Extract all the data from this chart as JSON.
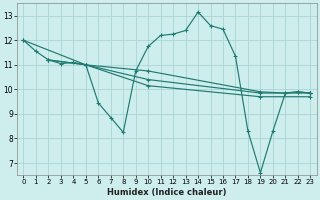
{
  "xlabel": "Humidex (Indice chaleur)",
  "xlim": [
    -0.5,
    23.5
  ],
  "ylim": [
    6.5,
    13.5
  ],
  "xticks": [
    0,
    1,
    2,
    3,
    4,
    5,
    6,
    7,
    8,
    9,
    10,
    11,
    12,
    13,
    14,
    15,
    16,
    17,
    18,
    19,
    20,
    21,
    22,
    23
  ],
  "yticks": [
    7,
    8,
    9,
    10,
    11,
    12,
    13
  ],
  "bg_color": "#ceeeed",
  "grid_color": "#aad4d2",
  "line_color": "#1f7a72",
  "series": [
    {
      "x": [
        0,
        1,
        2,
        3,
        4,
        5,
        6,
        7,
        8,
        9,
        10,
        11,
        12,
        13,
        14,
        15,
        16,
        17,
        18,
        19,
        20,
        21,
        22,
        23
      ],
      "y": [
        12.0,
        11.55,
        11.2,
        11.05,
        11.1,
        11.0,
        9.45,
        8.85,
        8.25,
        10.75,
        11.75,
        12.2,
        12.25,
        12.4,
        13.15,
        12.6,
        12.45,
        11.35,
        8.3,
        6.6,
        8.3,
        9.85,
        9.9,
        9.85
      ]
    },
    {
      "x": [
        0,
        5,
        10,
        19,
        21,
        22,
        23
      ],
      "y": [
        12.0,
        11.0,
        10.75,
        9.9,
        9.85,
        9.9,
        9.85
      ]
    },
    {
      "x": [
        2,
        5,
        10,
        19,
        23
      ],
      "y": [
        11.2,
        11.0,
        10.4,
        9.85,
        9.85
      ]
    },
    {
      "x": [
        2,
        5,
        10,
        19,
        23
      ],
      "y": [
        11.2,
        11.0,
        10.15,
        9.7,
        9.7
      ]
    }
  ]
}
